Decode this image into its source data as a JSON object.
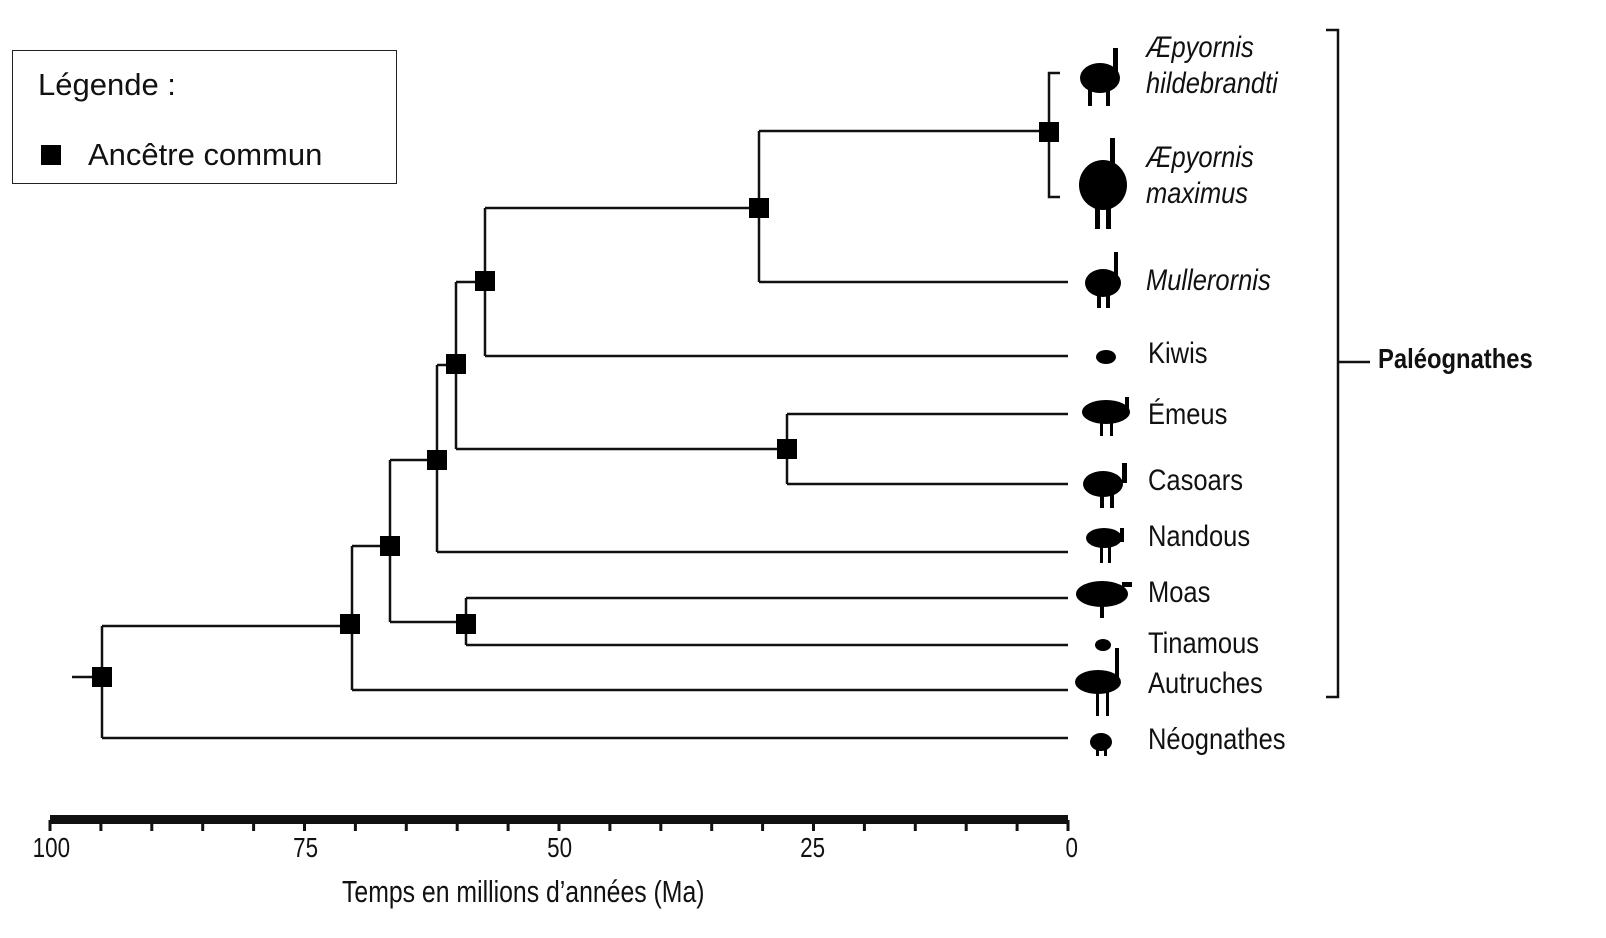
{
  "legend": {
    "title": "Légende :",
    "items": [
      {
        "label": "Ancêtre commun"
      }
    ]
  },
  "leaves": [
    {
      "name": "Æpyornis",
      "name2": "hildebrandti",
      "italic": true
    },
    {
      "name": "Æpyornis",
      "name2": "maximus",
      "italic": true
    },
    {
      "name": "Mullerornis",
      "italic": true
    },
    {
      "name": "Kiwis"
    },
    {
      "name": "Émeus"
    },
    {
      "name": "Casoars"
    },
    {
      "name": "Nandous"
    },
    {
      "name": "Moas"
    },
    {
      "name": "Tinamous"
    },
    {
      "name": "Autruches"
    },
    {
      "name": "Néognathes"
    }
  ],
  "group_label": "Paléognathes",
  "axis": {
    "label": "Temps en millions d’années (Ma)",
    "range_ma": [
      100,
      0
    ],
    "ticks": [
      "100",
      "75",
      "50",
      "25",
      "0"
    ],
    "minor_step_ma": 5
  }
}
